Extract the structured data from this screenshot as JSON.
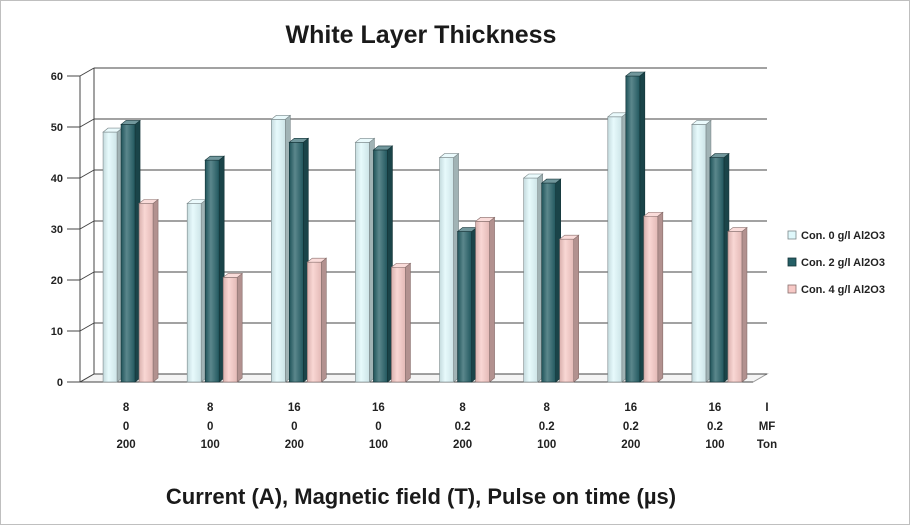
{
  "chart_data": {
    "type": "bar",
    "title": "White Layer Thickness",
    "xlabel": "Current (A), Magnetic field (T), Pulse on time (µs)",
    "ylabel": "",
    "ylim": [
      0,
      60
    ],
    "yticks": [
      0,
      10,
      20,
      30,
      40,
      50,
      60
    ],
    "grid": true,
    "legend_position": "right",
    "category_rows": [
      {
        "name": "I",
        "values": [
          "8",
          "8",
          "16",
          "16",
          "8",
          "8",
          "16",
          "16"
        ]
      },
      {
        "name": "MF",
        "values": [
          "0",
          "0",
          "0",
          "0",
          "0.2",
          "0.2",
          "0.2",
          "0.2"
        ]
      },
      {
        "name": "Ton",
        "values": [
          "200",
          "100",
          "200",
          "100",
          "200",
          "100",
          "200",
          "100"
        ]
      }
    ],
    "series": [
      {
        "name": "Con. 0 g/l Al2O3",
        "color": "#dff8fb",
        "values": [
          49,
          35,
          51.5,
          47,
          44,
          40,
          52,
          50.5
        ]
      },
      {
        "name": "Con. 2 g/l Al2O3",
        "color": "#245f66",
        "values": [
          50.5,
          43.5,
          47,
          45.5,
          29.5,
          39,
          60,
          44
        ]
      },
      {
        "name": "Con. 4 g/l Al2O3",
        "color": "#f7c9c6",
        "values": [
          35,
          20.5,
          23.5,
          22.5,
          31.5,
          28,
          32.5,
          29.5
        ]
      }
    ]
  }
}
